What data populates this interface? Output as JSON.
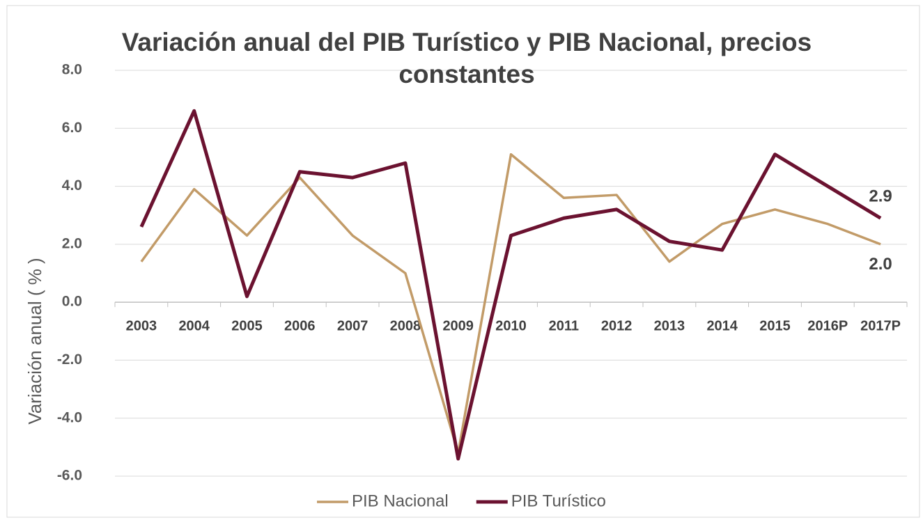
{
  "chart_data": {
    "type": "line",
    "title": "Variación anual del PIB Turístico y PIB Nacional, precios constantes",
    "y_label": "Variación anual ( % )",
    "categories": [
      "2003",
      "2004",
      "2005",
      "2006",
      "2007",
      "2008",
      "2009",
      "2010",
      "2011",
      "2012",
      "2013",
      "2014",
      "2015",
      "2016P",
      "2017P"
    ],
    "series": [
      {
        "name": "PIB Nacional",
        "color": "#c29b68",
        "values": [
          1.4,
          3.9,
          2.3,
          4.3,
          2.3,
          1.0,
          -5.2,
          5.1,
          3.6,
          3.7,
          1.4,
          2.7,
          3.2,
          2.7,
          2.0
        ],
        "value_labels": [
          null,
          null,
          null,
          null,
          null,
          null,
          null,
          null,
          null,
          null,
          null,
          null,
          null,
          null,
          "2.0"
        ]
      },
      {
        "name": "PIB Turístico",
        "color": "#6b1230",
        "values": [
          2.6,
          6.6,
          0.2,
          4.5,
          4.3,
          4.8,
          -5.4,
          2.3,
          2.9,
          3.2,
          2.1,
          1.8,
          5.1,
          4.0,
          2.9
        ],
        "value_labels": [
          null,
          null,
          null,
          null,
          null,
          null,
          null,
          null,
          null,
          null,
          null,
          null,
          null,
          null,
          "2.9"
        ]
      }
    ],
    "ylim": [
      -6,
      8
    ],
    "yticks": [
      {
        "value": -6,
        "label": "-6.0"
      },
      {
        "value": -4,
        "label": "-4.0"
      },
      {
        "value": -2,
        "label": "-2.0"
      },
      {
        "value": 0,
        "label": "0.0"
      },
      {
        "value": 2,
        "label": "2.0"
      },
      {
        "value": 4,
        "label": "4.0"
      },
      {
        "value": 6,
        "label": "6.0"
      },
      {
        "value": 8,
        "label": "8.0"
      }
    ],
    "grid": true,
    "legend": "bottom"
  }
}
